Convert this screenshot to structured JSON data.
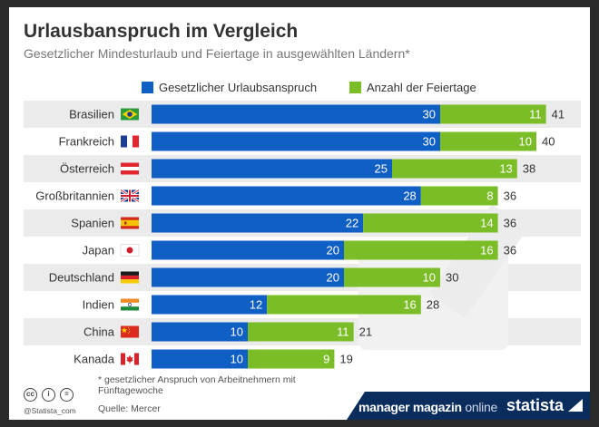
{
  "header": {
    "title": "Urlausbanspruch im Vergleich",
    "subtitle": "Gesetzlicher Mindesturlaub und Feiertage in ausgewählten Ländern*"
  },
  "legend": [
    {
      "label": "Gesetzlicher Urlaubsanspruch",
      "color": "#0f5fc4"
    },
    {
      "label": "Anzahl der Feiertage",
      "color": "#7bbd27"
    }
  ],
  "colors": {
    "vacation": "#0f5fc4",
    "holidays": "#7bbd27",
    "row_stripe": "#ebebeb",
    "footer_band": "#0a2d5e"
  },
  "chart_data": {
    "type": "bar",
    "orientation": "horizontal",
    "stacked": true,
    "title": "Urlausbanspruch im Vergleich",
    "subtitle": "Gesetzlicher Mindesturlaub und Feiertage in ausgewählten Ländern*",
    "categories": [
      "Brasilien",
      "Frankreich",
      "Österreich",
      "Großbritannien",
      "Spanien",
      "Japan",
      "Deutschland",
      "Indien",
      "China",
      "Kanada"
    ],
    "series": [
      {
        "name": "Gesetzlicher Urlaubsanspruch",
        "values": [
          30,
          30,
          25,
          28,
          22,
          20,
          20,
          12,
          10,
          10
        ]
      },
      {
        "name": "Anzahl der Feiertage",
        "values": [
          11,
          10,
          13,
          8,
          14,
          16,
          10,
          16,
          11,
          9
        ]
      }
    ],
    "totals": [
      41,
      40,
      38,
      36,
      36,
      36,
      30,
      28,
      21,
      19
    ],
    "flag_icons": [
      "brazil-flag-icon",
      "france-flag-icon",
      "austria-flag-icon",
      "uk-flag-icon",
      "spain-flag-icon",
      "japan-flag-icon",
      "germany-flag-icon",
      "india-flag-icon",
      "china-flag-icon",
      "canada-flag-icon"
    ],
    "xlim": [
      0,
      41
    ],
    "legend_position": "top",
    "grid": false
  },
  "footer": {
    "footnote": "* gesetzlicher Anspruch von Arbeitnehmern mit Fünftagewoche",
    "source": "Quelle: Mercer",
    "credit": "@Statista_com",
    "partner_name": "manager magazin",
    "partner_suffix": "online",
    "brand": "statista",
    "cc_icons": [
      "cc-icon",
      "by-icon",
      "nd-icon"
    ]
  }
}
